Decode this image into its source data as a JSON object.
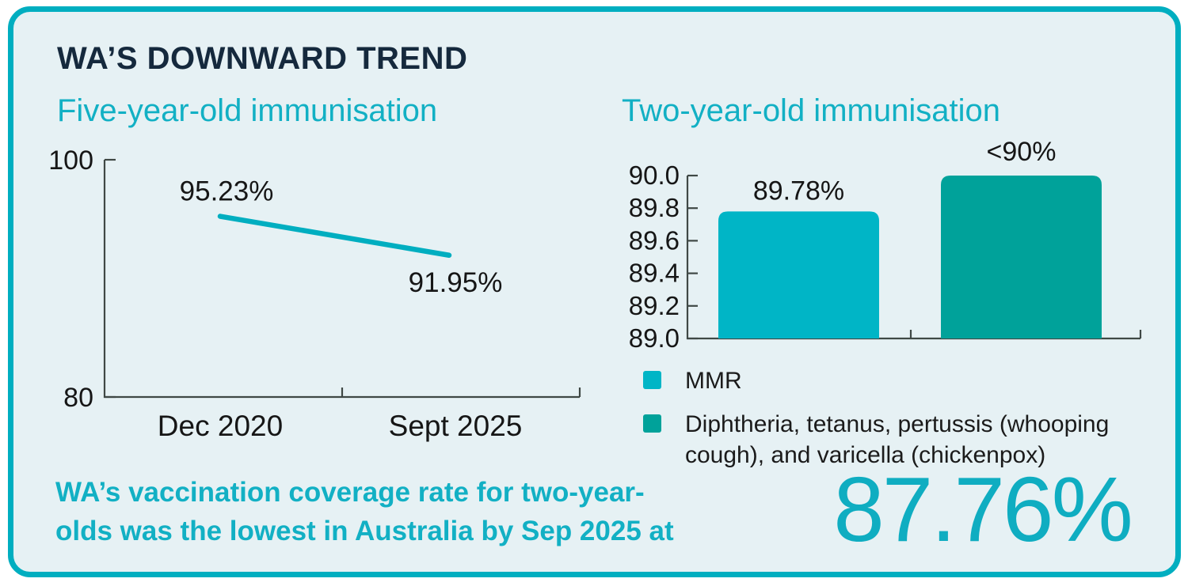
{
  "header": {
    "title": "WA’S DOWNWARD TREND"
  },
  "colors": {
    "card_background": "#e6f1f4",
    "card_border": "#00aec0",
    "brand_teal": "#12b0c4",
    "title_navy": "#15293d",
    "axis": "#3f4845",
    "chart_text": "#161616",
    "bar_light_teal": "#00b5c6",
    "bar_dark_teal": "#00a29a",
    "big_stat_teal": "#0fadc1"
  },
  "chart_data": [
    {
      "type": "line",
      "title": "Five-year-old immunisation",
      "x": [
        "Dec 2020",
        "Sept 2025"
      ],
      "values": [
        95.23,
        91.95
      ],
      "point_labels": [
        "95.23%",
        "91.95%"
      ],
      "ylim": [
        80,
        100
      ],
      "yticks": [
        100,
        80
      ],
      "ytick_labels": [
        "100",
        "80"
      ],
      "line_color": "#00aec0",
      "grid": "off",
      "legend_position": "none"
    },
    {
      "type": "bar",
      "title": "Two-year-old immunisation",
      "categories": [
        "MMR",
        "Diphtheria, tetanus, pertussis (whooping cough), and varicella (chickenpox)"
      ],
      "values": [
        89.78,
        90.0
      ],
      "bar_labels": [
        "89.78%",
        "<90%"
      ],
      "ylim": [
        89.0,
        90.0
      ],
      "yticks": [
        90.0,
        89.8,
        89.6,
        89.4,
        89.2,
        89.0
      ],
      "ytick_labels": [
        "90.0",
        "89.8",
        "89.6",
        "89.4",
        "89.2",
        "89.0"
      ],
      "bar_colors": [
        "#00b5c6",
        "#00a29a"
      ],
      "grid": "off",
      "legend_position": "below",
      "legend": [
        {
          "label": "MMR",
          "color": "#00b5c6"
        },
        {
          "label": "Diphtheria, tetanus, pertussis (whooping cough), and varicella (chickenpox)",
          "color": "#00a29a"
        }
      ]
    }
  ],
  "statement": {
    "lines": [
      "WA’s vaccination coverage rate for two-year-",
      "olds was the lowest in Australia by Sep 2025 at"
    ],
    "value": "87.76%"
  }
}
